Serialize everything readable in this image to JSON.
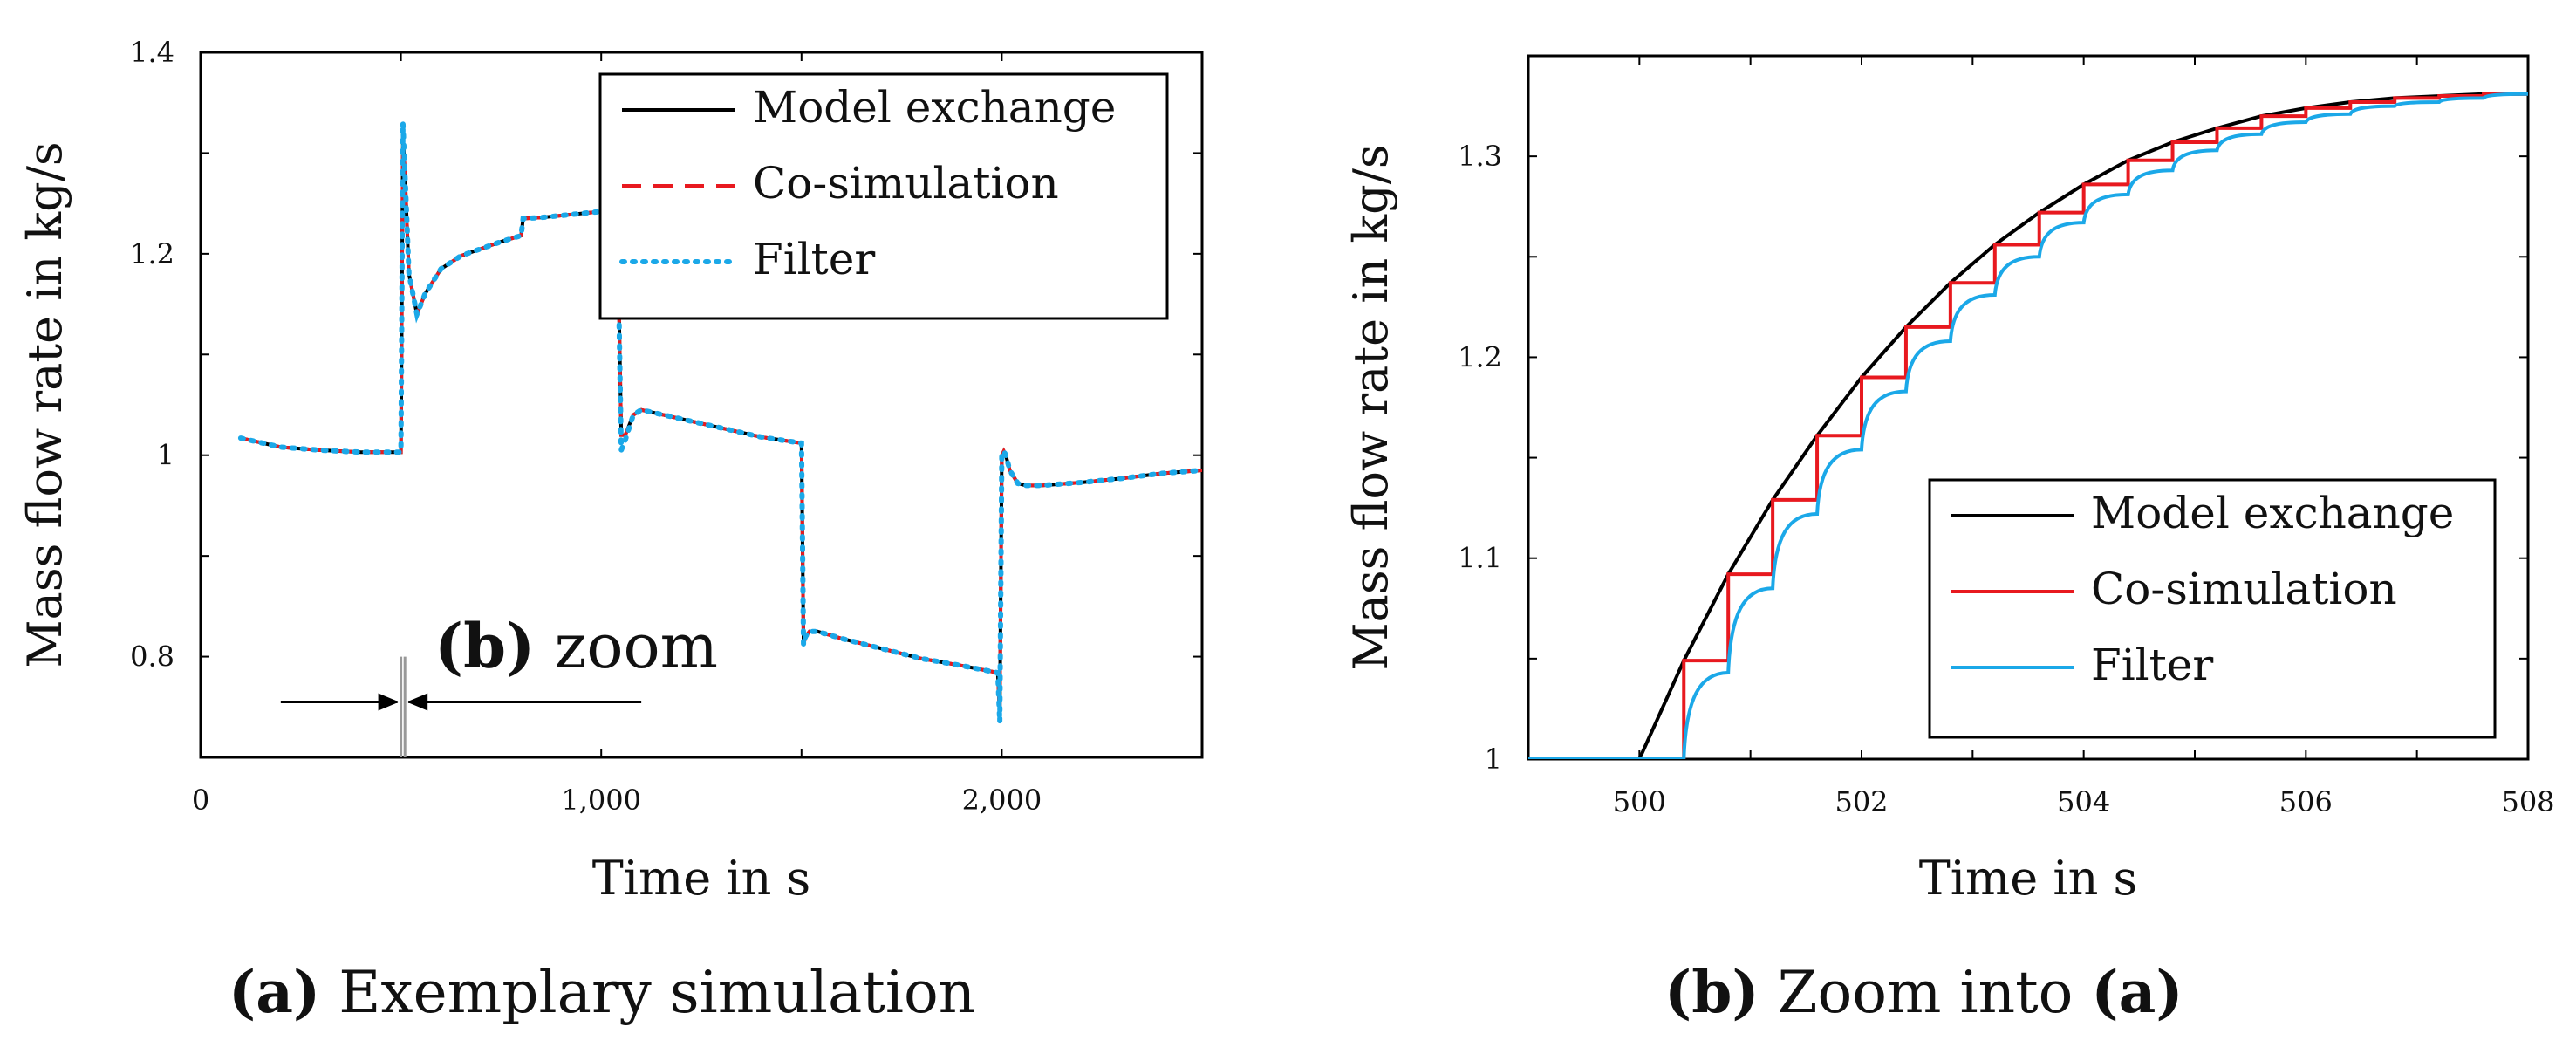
{
  "chart_data": [
    {
      "type": "line",
      "title": "",
      "xlabel": "Time in s",
      "ylabel": "Mass flow rate in kg/s",
      "xlim": [
        0,
        2500
      ],
      "ylim": [
        0.7,
        1.4
      ],
      "xticks": [
        0,
        1000,
        2000
      ],
      "xtick_labels": [
        "0",
        "1,000",
        "2,000"
      ],
      "yticks": [
        0.8,
        1.0,
        1.2,
        1.4
      ],
      "ytick_labels": [
        "0.8",
        "1",
        "1.2",
        "1.4"
      ],
      "grid": false,
      "legend_position": "top-right",
      "annotation": {
        "prefix": "(b)",
        "text": "zoom",
        "x_from": 500,
        "x_to": 510
      },
      "series": [
        {
          "name": "Model exchange",
          "style": "solid",
          "color": "#000000",
          "x": [
            100,
            200,
            300,
            400,
            500,
            505,
            510,
            520,
            540,
            560,
            600,
            650,
            700,
            750,
            800,
            805,
            850,
            900,
            950,
            1000,
            1020,
            1030,
            1040,
            1050,
            1060,
            1080,
            1100,
            1200,
            1300,
            1400,
            1500,
            1505,
            1510,
            1520,
            1540,
            1600,
            1700,
            1800,
            1900,
            1990,
            1995,
            2000,
            2005,
            2010,
            2020,
            2040,
            2060,
            2100,
            2200,
            2300,
            2400,
            2500
          ],
          "y": [
            1.017,
            1.008,
            1.005,
            1.003,
            1.003,
            1.32,
            1.28,
            1.18,
            1.14,
            1.16,
            1.185,
            1.198,
            1.205,
            1.212,
            1.218,
            1.235,
            1.236,
            1.238,
            1.24,
            1.242,
            1.242,
            1.242,
            1.242,
            1.02,
            1.02,
            1.04,
            1.045,
            1.036,
            1.027,
            1.018,
            1.012,
            0.812,
            0.82,
            0.825,
            0.825,
            0.818,
            0.808,
            0.798,
            0.791,
            0.784,
            0.74,
            1.0,
            1.004,
            1.0,
            0.985,
            0.972,
            0.97,
            0.97,
            0.973,
            0.977,
            0.982,
            0.985
          ]
        },
        {
          "name": "Co-simulation",
          "style": "dashed",
          "color": "#e8191f",
          "x": [
            100,
            200,
            300,
            400,
            500,
            505,
            510,
            520,
            540,
            560,
            600,
            650,
            700,
            750,
            800,
            805,
            850,
            900,
            950,
            1000,
            1020,
            1030,
            1040,
            1050,
            1060,
            1080,
            1100,
            1200,
            1300,
            1400,
            1500,
            1505,
            1510,
            1520,
            1540,
            1600,
            1700,
            1800,
            1900,
            1990,
            1995,
            2000,
            2005,
            2010,
            2020,
            2040,
            2060,
            2100,
            2200,
            2300,
            2400,
            2500
          ],
          "y": [
            1.017,
            1.008,
            1.005,
            1.003,
            1.003,
            1.32,
            1.28,
            1.18,
            1.14,
            1.16,
            1.185,
            1.198,
            1.205,
            1.212,
            1.218,
            1.235,
            1.236,
            1.238,
            1.24,
            1.242,
            1.242,
            1.242,
            1.242,
            1.02,
            1.02,
            1.04,
            1.045,
            1.036,
            1.027,
            1.018,
            1.012,
            0.812,
            0.82,
            0.825,
            0.825,
            0.818,
            0.808,
            0.798,
            0.791,
            0.784,
            0.74,
            1.0,
            1.004,
            1.0,
            0.985,
            0.972,
            0.97,
            0.97,
            0.973,
            0.977,
            0.982,
            0.985
          ]
        },
        {
          "name": "Filter",
          "style": "dotted",
          "color": "#1ba8e8",
          "x": [
            100,
            200,
            300,
            400,
            500,
            505,
            510,
            520,
            540,
            560,
            600,
            650,
            700,
            750,
            800,
            805,
            850,
            900,
            950,
            1000,
            1020,
            1030,
            1040,
            1050,
            1060,
            1080,
            1100,
            1200,
            1300,
            1400,
            1500,
            1505,
            1510,
            1520,
            1540,
            1600,
            1700,
            1800,
            1900,
            1990,
            1995,
            2000,
            2005,
            2010,
            2020,
            2040,
            2060,
            2100,
            2200,
            2300,
            2400,
            2500
          ],
          "y": [
            1.017,
            1.008,
            1.005,
            1.003,
            1.003,
            1.33,
            1.28,
            1.18,
            1.14,
            1.16,
            1.185,
            1.198,
            1.205,
            1.212,
            1.218,
            1.235,
            1.236,
            1.238,
            1.24,
            1.242,
            1.242,
            1.242,
            1.242,
            1.005,
            1.015,
            1.04,
            1.045,
            1.036,
            1.027,
            1.018,
            1.012,
            0.812,
            0.82,
            0.825,
            0.825,
            0.818,
            0.808,
            0.798,
            0.791,
            0.784,
            0.735,
            1.0,
            1.004,
            1.0,
            0.985,
            0.972,
            0.97,
            0.97,
            0.973,
            0.977,
            0.982,
            0.985
          ]
        }
      ],
      "caption": {
        "label": "(a)",
        "text": "Exemplary simulation"
      }
    },
    {
      "type": "line",
      "title": "",
      "xlabel": "Time in s",
      "ylabel": "Mass flow rate in kg/s",
      "xlim": [
        499,
        508
      ],
      "ylim": [
        1.0,
        1.35
      ],
      "xticks": [
        500,
        502,
        504,
        506,
        508
      ],
      "xtick_labels": [
        "500",
        "502",
        "504",
        "506",
        "508"
      ],
      "yticks": [
        1.0,
        1.1,
        1.2,
        1.3
      ],
      "ytick_labels": [
        "1",
        "1.1",
        "1.2",
        "1.3"
      ],
      "grid": false,
      "legend_position": "bottom-right",
      "series": [
        {
          "name": "Model exchange",
          "style": "solid",
          "color": "#000000",
          "x": [
            499,
            500,
            500.4,
            500.8,
            501.2,
            501.6,
            502,
            502.4,
            502.8,
            503.2,
            503.6,
            504,
            504.4,
            504.8,
            505.2,
            505.6,
            506,
            506.4,
            506.8,
            507.2,
            507.6,
            508
          ],
          "y": [
            1.0,
            1.0,
            1.049,
            1.092,
            1.129,
            1.161,
            1.19,
            1.215,
            1.237,
            1.256,
            1.272,
            1.286,
            1.298,
            1.307,
            1.314,
            1.32,
            1.324,
            1.327,
            1.329,
            1.33,
            1.331,
            1.331
          ]
        },
        {
          "name": "Co-simulation",
          "style": "step",
          "color": "#e8191f",
          "x": [
            499,
            500.4,
            500.8,
            501.2,
            501.6,
            502,
            502.4,
            502.8,
            503.2,
            503.6,
            504,
            504.4,
            504.8,
            505.2,
            505.6,
            506,
            506.4,
            506.8,
            507.2,
            507.6,
            508
          ],
          "y": [
            1.0,
            1.049,
            1.092,
            1.129,
            1.161,
            1.19,
            1.215,
            1.237,
            1.256,
            1.272,
            1.286,
            1.298,
            1.307,
            1.314,
            1.32,
            1.324,
            1.327,
            1.329,
            1.33,
            1.331,
            1.331
          ]
        },
        {
          "name": "Filter",
          "style": "smoothed-step",
          "color": "#1ba8e8",
          "x": [
            499,
            500.4,
            500.8,
            501.2,
            501.6,
            502,
            502.4,
            502.8,
            503.2,
            503.6,
            504,
            504.4,
            504.8,
            505.2,
            505.6,
            506,
            506.4,
            506.8,
            507.2,
            507.6,
            508
          ],
          "y": [
            1.0,
            1.0,
            1.043,
            1.085,
            1.122,
            1.154,
            1.183,
            1.208,
            1.231,
            1.25,
            1.267,
            1.281,
            1.293,
            1.303,
            1.311,
            1.317,
            1.321,
            1.325,
            1.327,
            1.329,
            1.331
          ]
        }
      ],
      "caption": {
        "label": "(b)",
        "text": "Zoom into",
        "ref": "(a)"
      }
    }
  ]
}
